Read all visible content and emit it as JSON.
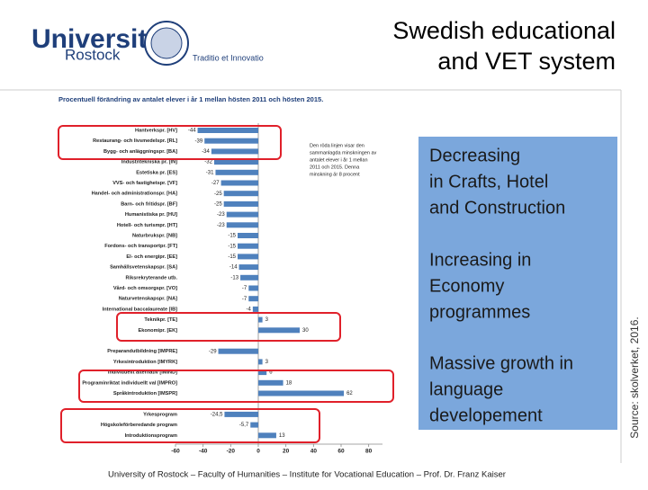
{
  "slide": {
    "title": [
      "Swedish educational",
      "and VET system"
    ],
    "logo": {
      "name": "Universität",
      "city": "Rostock",
      "motto": "Traditio et Innovatio"
    },
    "callouts": [
      [
        "Decreasing",
        "in Crafts, Hotel",
        "and Construction"
      ],
      [
        "Increasing in",
        "Economy",
        "programmes"
      ],
      [
        "Massive growth in",
        "language",
        "developement"
      ]
    ],
    "footer": "University of Rostock – Faculty of Humanities – Institute for Vocational Education – Prof. Dr. Franz Kaiser",
    "source": "Source: skolverket, 2016."
  },
  "chart_data": {
    "type": "bar",
    "orientation": "horizontal",
    "title": "Procentuell förändring av antalet elever i år 1 mellan hösten 2011 och hösten 2015.",
    "annotation": [
      "Den röda linjen visar den",
      "sammanlagda minskningen av",
      "antalet elever i år 1 mellan",
      "2011 och 2015. Denna",
      "minskning är 8 procent"
    ],
    "categories": [
      "Hantverkspr. [HV]",
      "Restaurang- och livsmedelspr. [RL]",
      "Bygg- och anläggningspr. [BA]",
      "Industritekniska pr. [IN]",
      "Estetiska pr. [ES]",
      "VVS- och fastighetspr. [VF]",
      "Handel- och administrationspr. [HA]",
      "Barn- och fritidspr. [BF]",
      "Humanistiska pr. [HU]",
      "Hotell- och turismpr. [HT]",
      "Naturbrukspr. [NB]",
      "Fordons- och transportpr. [FT]",
      "El- och energipr. [EE]",
      "Samhällsvetenskapspr. [SA]",
      "Riksrekryterande utb.",
      "Vård- och omsorgspr. [VO]",
      "Naturvetenskapspr. [NA]",
      "International baccalaureate [IB]",
      "Teknikpr. [TE]",
      "Ekonomipr. [EK]",
      null,
      "Preparandutbildning [IMPRE]",
      "Yrkesintroduktion [IMYRK]",
      "Individuellt alternativ [IMIND]",
      "Programinriktat individuellt val [IMPRO]",
      "Språkintroduktion [IMSPR]",
      null,
      "Yrkesprogram",
      "Högskoleförberedande program",
      "Introduktionsprogram"
    ],
    "values": [
      -44,
      -39,
      -34,
      -32,
      -31,
      -27,
      -25,
      -25,
      -23,
      -23,
      -15,
      -15,
      -15,
      -14,
      -13,
      -7,
      -7,
      -4,
      3,
      30,
      null,
      -29,
      3,
      6,
      18,
      62,
      null,
      -24.5,
      -5.7,
      13
    ],
    "value_labels": [
      "-44",
      "-39",
      "-34",
      "-32",
      "-31",
      "-27",
      "-25",
      "-25",
      "-23",
      "-23",
      "-15",
      "-15",
      "-15",
      "-14",
      "-13",
      "-7",
      "-7",
      "-4",
      "3",
      "30",
      null,
      "-29",
      "3",
      "6",
      "18",
      "62",
      null,
      "-24,5",
      "-5,7",
      "13"
    ],
    "color": "#4f81bd",
    "xlim": [
      -60,
      90
    ],
    "xticks": [
      -60,
      -40,
      -20,
      0,
      20,
      40,
      60,
      80
    ]
  }
}
